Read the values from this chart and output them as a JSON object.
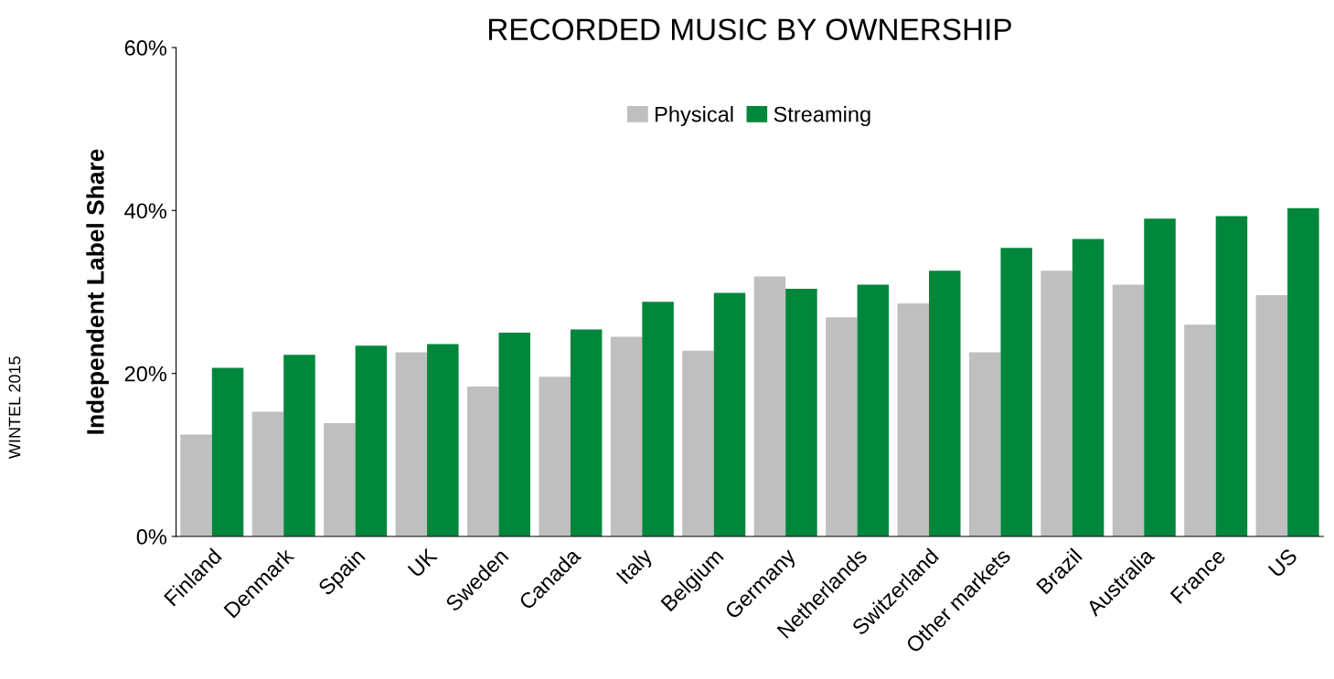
{
  "chart_data": {
    "type": "bar",
    "title": "RECORDED MUSIC BY OWNERSHIP",
    "ylabel": "Independent Label Share",
    "categories": [
      "Finland",
      "Denmark",
      "Spain",
      "UK",
      "Sweden",
      "Canada",
      "Italy",
      "Belgium",
      "Germany",
      "Netherlands",
      "Switzerland",
      "Other markets",
      "Brazil",
      "Australia",
      "France",
      "US"
    ],
    "series": [
      {
        "name": "Physical",
        "color": "#bfbfbf",
        "values": [
          12.5,
          15.3,
          13.9,
          22.6,
          18.4,
          19.6,
          24.5,
          22.8,
          31.9,
          26.9,
          28.6,
          22.6,
          32.6,
          30.9,
          26.0,
          29.6
        ]
      },
      {
        "name": "Streaming",
        "color": "#00873c",
        "values": [
          20.7,
          22.3,
          23.4,
          23.6,
          25.0,
          25.4,
          28.8,
          29.9,
          30.4,
          30.9,
          32.6,
          35.4,
          36.5,
          39.0,
          39.3,
          40.3
        ]
      }
    ],
    "ylim": [
      0,
      60
    ],
    "yticks": [
      {
        "value": 0,
        "label": "0%"
      },
      {
        "value": 20,
        "label": "20%"
      },
      {
        "value": 40,
        "label": "40%"
      },
      {
        "value": 60,
        "label": "60%"
      }
    ],
    "grid": false,
    "legend": "top",
    "annotations": [
      "WINTEL 2015"
    ]
  }
}
